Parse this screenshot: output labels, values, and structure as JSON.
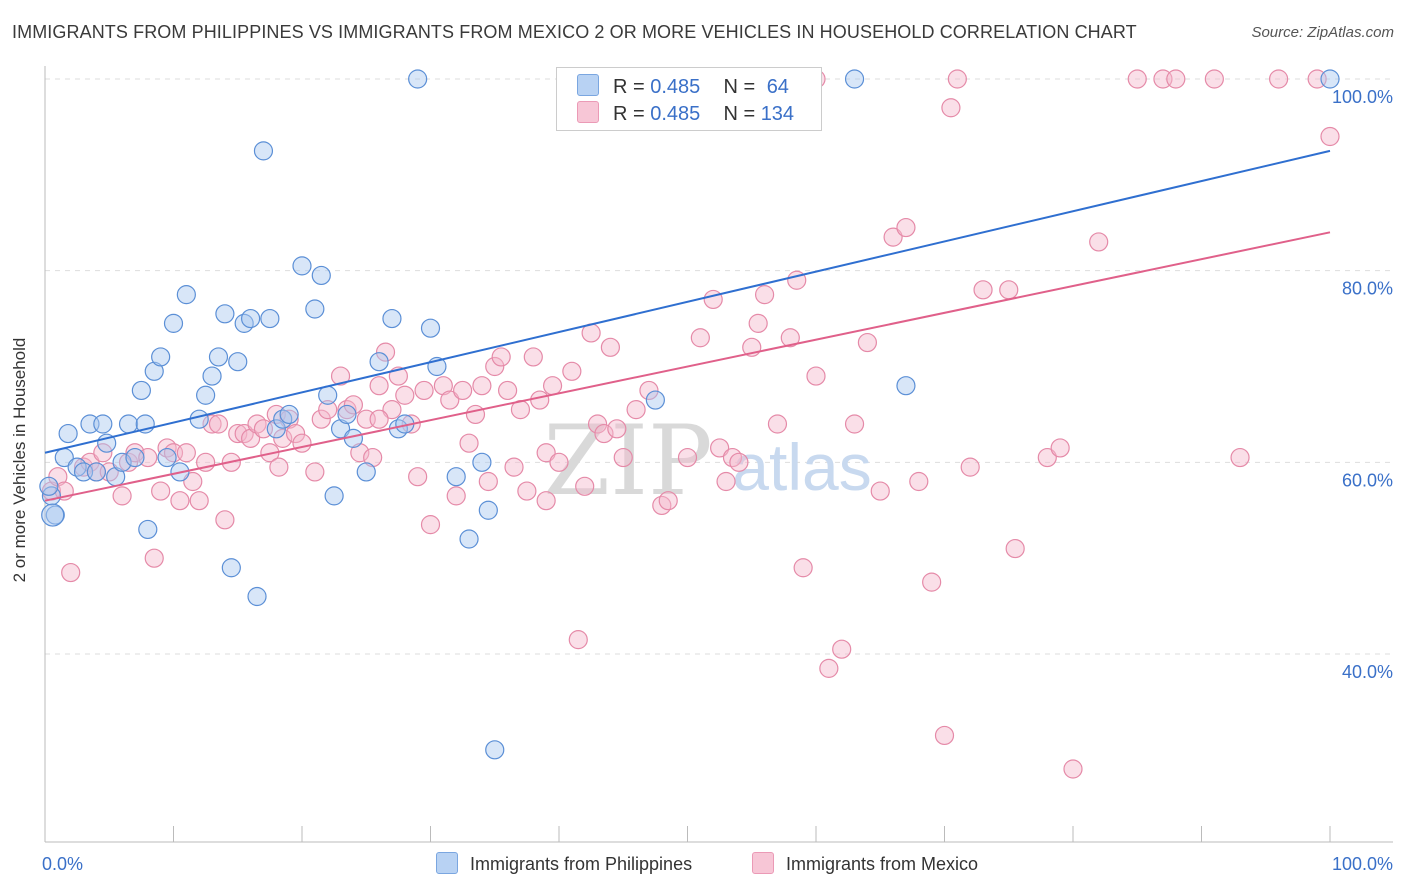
{
  "header": {
    "title": "IMMIGRANTS FROM PHILIPPINES VS IMMIGRANTS FROM MEXICO 2 OR MORE VEHICLES IN HOUSEHOLD CORRELATION CHART",
    "source": "Source: ZipAtlas.com"
  },
  "stats": {
    "r_label": "R =",
    "n_label": "N =",
    "philippines": {
      "r": "0.485",
      "n": "64"
    },
    "mexico": {
      "r": "0.485",
      "n": "134"
    }
  },
  "watermark": {
    "zip": "ZIP",
    "atlas": "atlas"
  },
  "colors": {
    "philippines_fill": "#a9c8f0",
    "philippines_stroke": "#5b8fd6",
    "philippines_line": "#2f6fd0",
    "mexico_fill": "#f5b9cc",
    "mexico_stroke": "#e58aa8",
    "mexico_line": "#e0608a",
    "tick_label": "#3a70c8"
  },
  "chart_data": {
    "type": "scatter",
    "title": "IMMIGRANTS FROM PHILIPPINES VS IMMIGRANTS FROM MEXICO 2 OR MORE VEHICLES IN HOUSEHOLD CORRELATION CHART",
    "xlabel": "",
    "ylabel": "2 or more Vehicles in Household",
    "xlim": [
      0,
      100
    ],
    "ylim": [
      20,
      101
    ],
    "x_tick_labels": [
      "0.0%",
      "100.0%"
    ],
    "y_ticks": [
      40,
      60,
      80,
      100
    ],
    "y_tick_labels": [
      "40.0%",
      "60.0%",
      "80.0%",
      "100.0%"
    ],
    "grid": true,
    "legend_position": "bottom",
    "series": [
      {
        "name": "Immigrants from Philippines",
        "trendline": {
          "x": [
            0,
            100
          ],
          "y": [
            61,
            92.5
          ]
        },
        "points": [
          [
            0.5,
            56.5
          ],
          [
            0.8,
            54.5
          ],
          [
            1.5,
            60.5
          ],
          [
            1.8,
            63
          ],
          [
            2.5,
            59.5
          ],
          [
            3,
            59
          ],
          [
            3.5,
            64
          ],
          [
            4,
            59
          ],
          [
            4.5,
            64
          ],
          [
            4.8,
            62
          ],
          [
            5.5,
            58.5
          ],
          [
            6,
            60
          ],
          [
            6.5,
            64
          ],
          [
            7,
            60.5
          ],
          [
            7.5,
            67.5
          ],
          [
            7.8,
            64
          ],
          [
            8,
            53
          ],
          [
            8.5,
            69.5
          ],
          [
            9,
            71
          ],
          [
            9.5,
            60.5
          ],
          [
            10,
            74.5
          ],
          [
            10.5,
            59
          ],
          [
            11,
            77.5
          ],
          [
            12,
            64.5
          ],
          [
            12.5,
            67
          ],
          [
            13,
            69
          ],
          [
            13.5,
            71
          ],
          [
            14,
            75.5
          ],
          [
            14.5,
            49
          ],
          [
            15,
            70.5
          ],
          [
            15.5,
            74.5
          ],
          [
            16,
            75
          ],
          [
            16.5,
            46
          ],
          [
            17,
            92.5
          ],
          [
            17.5,
            75
          ],
          [
            18,
            63.5
          ],
          [
            18.5,
            64.5
          ],
          [
            19,
            65
          ],
          [
            20,
            80.5
          ],
          [
            21,
            76
          ],
          [
            21.5,
            79.5
          ],
          [
            22,
            67
          ],
          [
            22.5,
            56.5
          ],
          [
            23,
            63.5
          ],
          [
            23.5,
            65
          ],
          [
            24,
            62.5
          ],
          [
            25,
            59
          ],
          [
            26,
            70.5
          ],
          [
            27,
            75
          ],
          [
            27.5,
            63.5
          ],
          [
            28,
            64
          ],
          [
            29,
            100
          ],
          [
            30,
            74
          ],
          [
            30.5,
            70
          ],
          [
            32,
            58.5
          ],
          [
            33,
            52
          ],
          [
            34,
            60
          ],
          [
            34.5,
            55
          ],
          [
            35,
            30
          ],
          [
            47.5,
            66.5
          ],
          [
            63,
            100
          ],
          [
            67,
            68
          ],
          [
            100,
            100
          ],
          [
            0.3,
            57.5
          ]
        ]
      },
      {
        "name": "Immigrants from Mexico",
        "trendline": {
          "x": [
            0,
            100
          ],
          "y": [
            56,
            84
          ]
        },
        "points": [
          [
            0.5,
            57
          ],
          [
            1,
            58.5
          ],
          [
            1.5,
            57
          ],
          [
            2,
            48.5
          ],
          [
            3,
            59.5
          ],
          [
            3.5,
            60
          ],
          [
            4,
            59
          ],
          [
            4.5,
            61
          ],
          [
            5,
            59
          ],
          [
            6,
            56.5
          ],
          [
            6.5,
            60
          ],
          [
            7,
            61
          ],
          [
            8,
            60.5
          ],
          [
            8.5,
            50
          ],
          [
            9,
            57
          ],
          [
            9.5,
            61.5
          ],
          [
            10,
            61
          ],
          [
            10.5,
            56
          ],
          [
            11,
            61
          ],
          [
            11.5,
            58
          ],
          [
            12,
            56
          ],
          [
            12.5,
            60
          ],
          [
            13,
            64
          ],
          [
            13.5,
            64
          ],
          [
            14,
            54
          ],
          [
            14.5,
            60
          ],
          [
            15,
            63
          ],
          [
            15.5,
            63
          ],
          [
            16,
            62.5
          ],
          [
            16.5,
            64
          ],
          [
            17,
            63.5
          ],
          [
            17.5,
            61
          ],
          [
            18,
            65
          ],
          [
            18.5,
            62.5
          ],
          [
            19,
            64.5
          ],
          [
            19.5,
            63
          ],
          [
            20,
            62
          ],
          [
            21,
            59
          ],
          [
            21.5,
            64.5
          ],
          [
            22,
            65.5
          ],
          [
            23,
            69
          ],
          [
            23.5,
            65.5
          ],
          [
            24,
            66
          ],
          [
            24.5,
            61
          ],
          [
            25,
            64.5
          ],
          [
            25.5,
            60.5
          ],
          [
            26,
            68
          ],
          [
            26.5,
            71.5
          ],
          [
            27,
            65.5
          ],
          [
            27.5,
            69
          ],
          [
            28,
            67
          ],
          [
            28.5,
            64
          ],
          [
            29,
            58.5
          ],
          [
            29.5,
            67.5
          ],
          [
            30,
            53.5
          ],
          [
            31,
            68
          ],
          [
            31.5,
            66.5
          ],
          [
            32,
            56.5
          ],
          [
            32.5,
            67.5
          ],
          [
            33,
            62
          ],
          [
            33.5,
            65
          ],
          [
            34,
            68
          ],
          [
            34.5,
            58
          ],
          [
            35,
            70
          ],
          [
            35.5,
            71
          ],
          [
            36,
            67.5
          ],
          [
            36.5,
            59.5
          ],
          [
            37,
            65.5
          ],
          [
            37.5,
            57
          ],
          [
            38,
            71
          ],
          [
            38.5,
            66.5
          ],
          [
            39,
            61
          ],
          [
            39.5,
            68
          ],
          [
            40,
            60
          ],
          [
            41,
            69.5
          ],
          [
            42,
            57.5
          ],
          [
            42.5,
            73.5
          ],
          [
            43,
            64
          ],
          [
            43.5,
            63
          ],
          [
            44,
            72
          ],
          [
            44.5,
            63.5
          ],
          [
            45,
            60.5
          ],
          [
            46,
            65.5
          ],
          [
            47,
            67.5
          ],
          [
            48,
            55.5
          ],
          [
            48.5,
            56
          ],
          [
            50,
            60.5
          ],
          [
            51,
            73
          ],
          [
            52,
            77
          ],
          [
            52.5,
            61.5
          ],
          [
            53,
            58
          ],
          [
            53.5,
            60.5
          ],
          [
            54,
            60
          ],
          [
            55,
            72
          ],
          [
            55.5,
            74.5
          ],
          [
            56,
            77.5
          ],
          [
            57,
            64
          ],
          [
            58,
            73
          ],
          [
            58.5,
            79
          ],
          [
            59,
            49
          ],
          [
            60,
            69
          ],
          [
            61,
            38.5
          ],
          [
            62,
            40.5
          ],
          [
            63,
            64
          ],
          [
            64,
            72.5
          ],
          [
            65,
            57
          ],
          [
            66,
            83.5
          ],
          [
            67,
            84.5
          ],
          [
            68,
            58
          ],
          [
            69,
            47.5
          ],
          [
            70,
            31.5
          ],
          [
            70.5,
            97
          ],
          [
            71,
            100
          ],
          [
            72,
            59.5
          ],
          [
            73,
            78
          ],
          [
            75,
            78
          ],
          [
            75.5,
            51
          ],
          [
            78,
            60.5
          ],
          [
            79,
            61.5
          ],
          [
            80,
            28
          ],
          [
            82,
            83
          ],
          [
            85,
            100
          ],
          [
            87,
            100
          ],
          [
            88,
            100
          ],
          [
            91,
            100
          ],
          [
            93,
            60.5
          ],
          [
            96,
            100
          ],
          [
            99,
            100
          ],
          [
            100,
            94
          ],
          [
            39,
            56
          ],
          [
            41.5,
            41.5
          ],
          [
            60,
            100
          ],
          [
            18.2,
            59.5
          ],
          [
            26,
            64.5
          ]
        ]
      }
    ]
  }
}
